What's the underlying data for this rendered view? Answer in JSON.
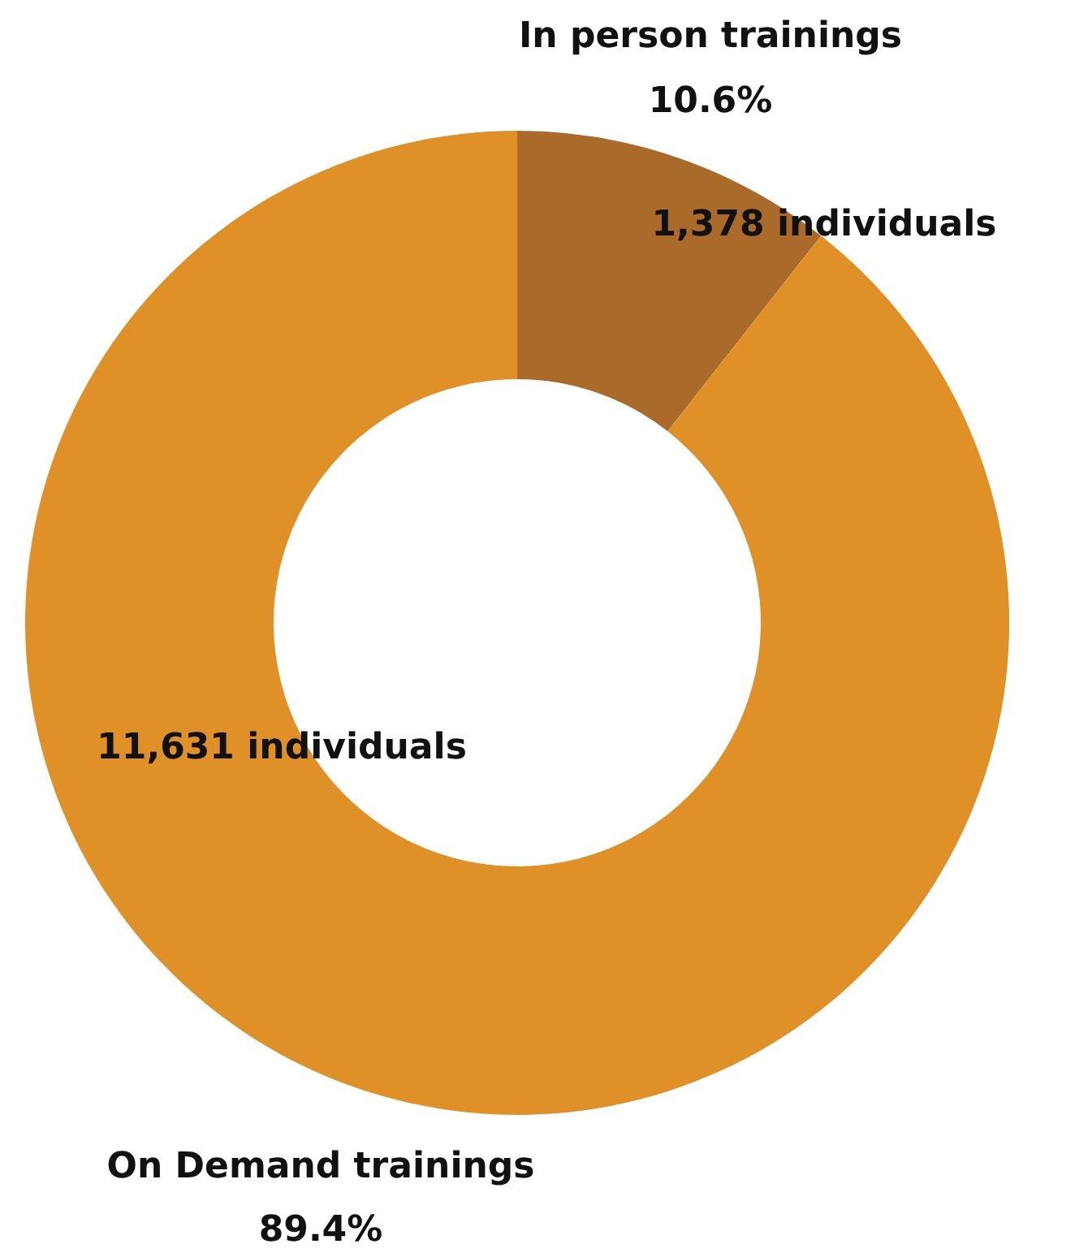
{
  "chart_data": {
    "type": "donut",
    "categories": [
      "In person trainings",
      "On Demand trainings"
    ],
    "values": [
      1378,
      11631
    ],
    "colors": [
      "#aa6a2a",
      "#df9027"
    ],
    "value_labels": [
      "1,378 individuals",
      "11,631 individuals"
    ],
    "annotations": [
      "10.6%",
      "89.4%"
    ]
  }
}
